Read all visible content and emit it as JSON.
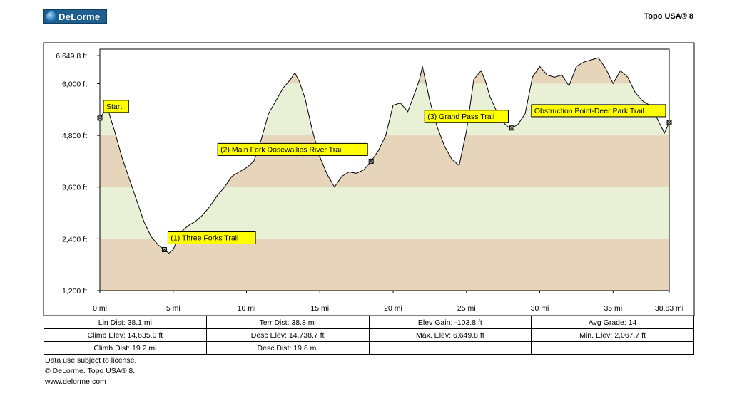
{
  "header": {
    "logo_text": "DeLorme",
    "product": "Topo USA® 8"
  },
  "chart_data": {
    "type": "area",
    "x": [
      0,
      0.5,
      1.0,
      1.5,
      2.0,
      2.5,
      3.0,
      3.5,
      4.0,
      4.4,
      4.7,
      5.0,
      5.5,
      6.0,
      6.5,
      7.0,
      7.5,
      8.0,
      8.5,
      9.0,
      9.5,
      10.0,
      10.5,
      11.0,
      11.5,
      12.0,
      12.5,
      13.0,
      13.3,
      13.6,
      14.0,
      14.5,
      15.0,
      15.5,
      16.0,
      16.5,
      17.0,
      17.5,
      18.0,
      18.5,
      19.0,
      19.5,
      20.0,
      20.5,
      21.0,
      21.5,
      21.8,
      22.0,
      22.5,
      23.0,
      23.5,
      24.0,
      24.5,
      25.0,
      25.5,
      26.0,
      26.3,
      26.6,
      27.0,
      27.5,
      28.0,
      28.5,
      29.0,
      29.5,
      30.0,
      30.5,
      31.0,
      31.5,
      32.0,
      32.5,
      33.0,
      33.5,
      34.0,
      34.5,
      35.0,
      35.5,
      36.0,
      36.5,
      37.0,
      37.5,
      38.0,
      38.5,
      38.83
    ],
    "values": [
      5200,
      5450,
      4900,
      4300,
      3800,
      3300,
      2800,
      2450,
      2250,
      2150,
      2068,
      2150,
      2550,
      2700,
      2800,
      2950,
      3150,
      3400,
      3600,
      3850,
      3950,
      4050,
      4200,
      4700,
      5300,
      5600,
      5900,
      6100,
      6250,
      6050,
      5650,
      4900,
      4300,
      3900,
      3600,
      3850,
      3950,
      3920,
      4000,
      4200,
      4450,
      4800,
      5500,
      5550,
      5350,
      5800,
      6100,
      6400,
      5600,
      5000,
      4550,
      4250,
      4100,
      4900,
      6100,
      6300,
      6050,
      5700,
      5400,
      5100,
      4950,
      5050,
      5300,
      6150,
      6400,
      6200,
      6150,
      6200,
      5950,
      6400,
      6500,
      6550,
      6600,
      6350,
      6000,
      6300,
      6150,
      5800,
      5600,
      5500,
      5200,
      4850,
      5100
    ],
    "x_ticks": [
      "0 mi",
      "5 mi",
      "10 mi",
      "15 mi",
      "20 mi",
      "25 mi",
      "30 mi",
      "35 mi",
      "38.83 mi"
    ],
    "x_tick_values": [
      0,
      5,
      10,
      15,
      20,
      25,
      30,
      35,
      38.83
    ],
    "y_ticks": [
      "1,200 ft",
      "2,400 ft",
      "3,600 ft",
      "4,800 ft",
      "6,000 ft",
      "6,649.8 ft"
    ],
    "y_tick_values": [
      1200,
      2400,
      3600,
      4800,
      6000,
      6649.8
    ],
    "xlim": [
      0,
      38.83
    ],
    "ylim": [
      1200,
      6800
    ],
    "bands": [
      {
        "from": 1200,
        "to": 2400,
        "color": "#e6d5bb"
      },
      {
        "from": 2400,
        "to": 3600,
        "color": "#e8f0d5"
      },
      {
        "from": 3600,
        "to": 4800,
        "color": "#e6d5bb"
      },
      {
        "from": 4800,
        "to": 6000,
        "color": "#e8f0d5"
      },
      {
        "from": 6000,
        "to": 6800,
        "color": "#e6d5bb"
      }
    ],
    "fill_color": "#ffffff",
    "line_color": "#000000",
    "waypoints": [
      {
        "label": "Start",
        "x": 0
      },
      {
        "label": "(1) Three Forks Trail",
        "x": 4.4
      },
      {
        "label": "(2) Main Fork Dosewallips River Trail",
        "x": 18.5
      },
      {
        "label": "(3) Grand Pass Trail",
        "x": 28.1
      },
      {
        "label": "Obstruction Point-Deer Park Trail",
        "x": 38.83
      }
    ],
    "label_color": "#ffff00"
  },
  "stats": {
    "lin_dist": "Lin Dist:  38.1 mi",
    "terr_dist": "Terr Dist:  38.8 mi",
    "elev_gain": "Elev Gain:  -103.8 ft",
    "avg_grade": "Avg Grade:  14",
    "climb_elev": "Climb Elev:  14,635.0 ft",
    "desc_elev": "Desc Elev:  14,738.7 ft",
    "max_elev": "Max. Elev:  6,649.8 ft",
    "min_elev": "Min. Elev:  2,067.7 ft",
    "climb_dist": "Climb Dist:  19.2 mi",
    "desc_dist": "Desc Dist:  19.6 mi"
  },
  "footer": {
    "line1": "Data use subject to license.",
    "line2": "© DeLorme. Topo USA® 8.",
    "line3": "www.delorme.com"
  }
}
